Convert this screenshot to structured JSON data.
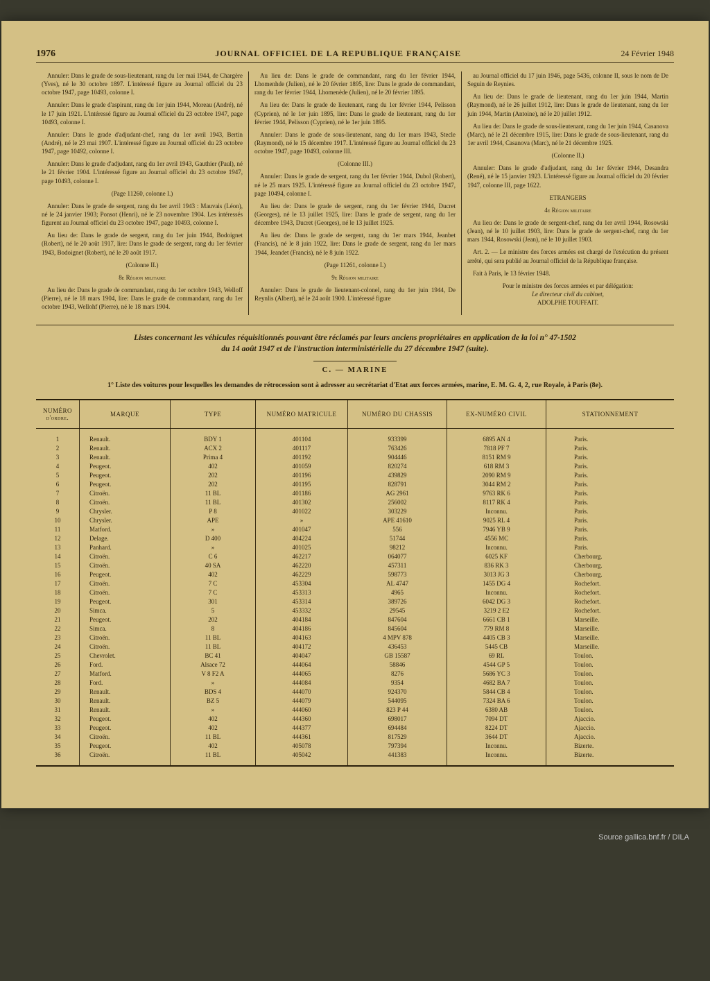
{
  "header": {
    "page_number": "1976",
    "journal_title": "JOURNAL OFFICIEL DE LA REPUBLIQUE FRANÇAISE",
    "date": "24 Février 1948"
  },
  "col1": {
    "p1": "Annuler: Dans le grade de sous-lieutenant, rang du 1er mai 1944, de Chargère (Yves), né le 30 octobre 1897. L'intéressé figure au Journal officiel du 23 octobre 1947, page 10493, colonne I.",
    "p2": "Annuler: Dans le grade d'aspirant, rang du 1er juin 1944, Moreau (André), né le 17 juin 1921. L'intéressé figure au Journal officiel du 23 octobre 1947, page 10493, colonne I.",
    "p3": "Annuler: Dans le grade d'adjudant-chef, rang du 1er avril 1943, Bertin (André), né le 23 mai 1907. L'intéressé figure au Journal officiel du 23 octobre 1947, page 10492, colonne I.",
    "p4": "Annuler: Dans le grade d'adjudant, rang du 1er avril 1943, Gauthier (Paul), né le 21 février 1904. L'intéressé figure au Journal officiel du 23 octobre 1947, page 10493, colonne I.",
    "s1": "(Page 11260, colonne I.)",
    "p5": "Annuler: Dans le grade de sergent, rang du 1er avril 1943 : Mauvais (Léon), né le 24 janvier 1903; Ponsot (Henri), né le 23 novembre 1904. Les intéressés figurent au Journal officiel du 23 octobre 1947, page 10493, colonne I.",
    "p6": "Au lieu de: Dans le grade de sergent, rang du 1er juin 1944, Bodoignet (Robert), né le 20 août 1917, lire: Dans le grade de sergent, rang du 1er février 1943, Bodoignet (Robert), né le 20 août 1917.",
    "s2": "(Colonne II.)",
    "s3": "8e Région militaire",
    "p7": "Au lieu de: Dans le grade de commandant, rang du 1er octobre 1943, Welloff (Pierre), né le 18 mars 1904, lire: Dans le grade de commandant, rang du 1er octobre 1943, Wellohf (Pierre), né le 18 mars 1904."
  },
  "col2": {
    "p1": "Au lieu de: Dans le grade de commandant, rang du 1er février 1944, Lhomenhde (Julien), né le 20 février 1895, lire: Dans le grade de commandant, rang du 1er février 1944, Lhomenède (Julien), né le 20 février 1895.",
    "p2": "Au lieu de: Dans le grade de lieutenant, rang du 1er février 1944, Pelisson (Cyprien), né le 1er juin 1895, lire: Dans le grade de lieutenant, rang du 1er février 1944, Pelisson (Cyprien), né le 1er juin 1895.",
    "p3": "Annuler: Dans le grade de sous-lieutenant, rang du 1er mars 1943, Stecle (Raymond), né le 15 décembre 1917. L'intéressé figure au Journal officiel du 23 octobre 1947, page 10493, colonne III.",
    "s1": "(Colonne III.)",
    "p4": "Annuler: Dans le grade de sergent, rang du 1er février 1944, Dubol (Robert), né le 25 mars 1925. L'intéressé figure au Journal officiel du 23 octobre 1947, page 10494, colonne I.",
    "p5": "Au lieu de: Dans le grade de sergent, rang du 1er février 1944, Ducret (Georges), né le 13 juillet 1925, lire: Dans le grade de sergent, rang du 1er décembre 1943, Ducret (Georges), né le 13 juillet 1925.",
    "p6": "Au lieu de: Dans le grade de sergent, rang du 1er mars 1944, Jeanbet (Francis), né le 8 juin 1922, lire: Dans le grade de sergent, rang du 1er mars 1944, Jeandet (Francis), né le 8 juin 1922.",
    "s2": "(Page 11261, colonne I.)",
    "s3": "9e Région militaire",
    "p7": "Annuler: Dans le grade de lieutenant-colonel, rang du 1er juin 1944, De Reynlis (Albert), né le 24 août 1900. L'intéressé figure"
  },
  "col3": {
    "p1": "au Journal officiel du 17 juin 1946, page 5436, colonne II, sous le nom de De Seguin de Reynies.",
    "p2": "Au lieu de: Dans le grade de lieutenant, rang du 1er juin 1944, Martin (Raymond), né le 26 juillet 1912, lire: Dans le grade de lieutenant, rang du 1er juin 1944, Martin (Antoine), né le 20 juillet 1912.",
    "p3": "Au lieu de: Dans le grade de sous-lieutenant, rang du 1er juin 1944, Casanova (Marc), né le 21 décembre 1915, lire: Dans le grade de sous-lieutenant, rang du 1er avril 1944, Casanova (Marc), né le 21 décembre 1925.",
    "s1": "(Colonne II.)",
    "p4": "Annuler: Dans le grade d'adjudant, rang du 1er février 1944, Desandra (René), né le 15 janvier 1923. L'intéressé figure au Journal officiel du 20 février 1947, colonne III, page 1622.",
    "s2": "ETRANGERS",
    "s3": "4e Région militaire",
    "p5": "Au lieu de: Dans le grade de sergent-chef, rang du 1er avril 1944, Rosowski (Jean), né le 10 juillet 1903, lire: Dans le grade de sergent-chef, rang du 1er mars 1944, Rosowski (Jean), né le 10 juillet 1903.",
    "p6": "Art. 2. — Le ministre des forces armées est chargé de l'exécution du présent arrêté, qui sera publié au Journal officiel de la République française.",
    "p7": "Fait à Paris, le 13 février 1948.",
    "sig1": "Pour le ministre des forces armées et par délégation:",
    "sig2": "Le directeur civil du cabinet,",
    "sig3": "ADOLPHE TOUFFAIT."
  },
  "section": {
    "title_line1": "Listes concernant les véhicules réquisitionnés pouvant être réclamés par leurs anciens propriétaires en application de la loi n° 47-1502",
    "title_line2": "du 14 août 1947 et de l'instruction interministérielle du 27 décembre 1947 (suite).",
    "marine": "C. — MARINE",
    "intro": "1° Liste des voitures pour lesquelles les demandes de rétrocession sont à adresser au secrétariat d'Etat aux forces armées, marine, E. M. G. 4, 2, rue Royale, à Paris (8e)."
  },
  "table": {
    "headers": {
      "num": "NUMÉRO d'ordre.",
      "marque": "MARQUE",
      "type": "TYPE",
      "matricule": "NUMÉRO MATRICULE",
      "chassis": "NUMÉRO DU CHASSIS",
      "civil": "EX-NUMÉRO CIVIL",
      "station": "STATIONNEMENT"
    },
    "rows": [
      [
        "1",
        "Renault.",
        "BDY 1",
        "401104",
        "933399",
        "6895 AN 4",
        "Paris."
      ],
      [
        "2",
        "Renault.",
        "ACX 2",
        "401117",
        "763426",
        "7818 PF 7",
        "Paris."
      ],
      [
        "3",
        "Renault.",
        "Prima 4",
        "401192",
        "904446",
        "8151 RM 9",
        "Paris."
      ],
      [
        "4",
        "Peugeot.",
        "402",
        "401059",
        "820274",
        "618 RM 3",
        "Paris."
      ],
      [
        "5",
        "Peugeot.",
        "202",
        "401196",
        "439829",
        "2090 RM 9",
        "Paris."
      ],
      [
        "6",
        "Peugeot.",
        "202",
        "401195",
        "828791",
        "3044 RM 2",
        "Paris."
      ],
      [
        "7",
        "Citroën.",
        "11 BL",
        "401186",
        "AG 2961",
        "9763 RK 6",
        "Paris."
      ],
      [
        "8",
        "Citroën.",
        "11 BL",
        "401302",
        "256002",
        "8117 RK 4",
        "Paris."
      ],
      [
        "9",
        "Chrysler.",
        "P 8",
        "401022",
        "303229",
        "Inconnu.",
        "Paris."
      ],
      [
        "10",
        "Chrysler.",
        "APE",
        "»",
        "APE 41610",
        "9025 RL 4",
        "Paris."
      ],
      [
        "11",
        "Matford.",
        "»",
        "401047",
        "556",
        "7946 YB 9",
        "Paris."
      ],
      [
        "12",
        "Delage.",
        "D 400",
        "404224",
        "51744",
        "4556 MC",
        "Paris."
      ],
      [
        "13",
        "Panhard.",
        "»",
        "401025",
        "98212",
        "Inconnu.",
        "Paris."
      ],
      [
        "14",
        "Citroën.",
        "C 6",
        "462217",
        "064077",
        "6025 KF",
        "Cherbourg."
      ],
      [
        "15",
        "Citroën.",
        "40 SA",
        "462220",
        "457311",
        "836 RK 3",
        "Cherbourg."
      ],
      [
        "16",
        "Peugeot.",
        "402",
        "462229",
        "598773",
        "3013 JG 3",
        "Cherbourg."
      ],
      [
        "17",
        "Citroën.",
        "7 C",
        "453304",
        "AL 4747",
        "1455 DG 4",
        "Rochefort."
      ],
      [
        "18",
        "Citroën.",
        "7 C",
        "453313",
        "4965",
        "Inconnu.",
        "Rochefort."
      ],
      [
        "19",
        "Peugeot.",
        "301",
        "453314",
        "389726",
        "6042 DG 3",
        "Rochefort."
      ],
      [
        "20",
        "Simca.",
        "5",
        "453332",
        "29545",
        "3219 2 E2",
        "Rochefort."
      ],
      [
        "21",
        "Peugeot.",
        "202",
        "404184",
        "847604",
        "6661 CB 1",
        "Marseille."
      ],
      [
        "22",
        "Simca.",
        "8",
        "404186",
        "845604",
        "779 RM 8",
        "Marseille."
      ],
      [
        "23",
        "Citroën.",
        "11 BL",
        "404163",
        "4 MPV 878",
        "4405 CB 3",
        "Marseille."
      ],
      [
        "24",
        "Citroën.",
        "11 BL",
        "404172",
        "436453",
        "5445 CB",
        "Marseille."
      ],
      [
        "25",
        "Chevrolet.",
        "BC 41",
        "404047",
        "GB 15587",
        "69 RL",
        "Toulon."
      ],
      [
        "26",
        "Ford.",
        "Alsace 72",
        "444064",
        "58846",
        "4544 GP 5",
        "Toulon."
      ],
      [
        "27",
        "Matford.",
        "V 8 F2 A",
        "444065",
        "8276",
        "5686 YC 3",
        "Toulon."
      ],
      [
        "28",
        "Ford.",
        "»",
        "444084",
        "9354",
        "4682 BA 7",
        "Toulon."
      ],
      [
        "29",
        "Renault.",
        "BDS 4",
        "444070",
        "924370",
        "5844 CB 4",
        "Toulon."
      ],
      [
        "30",
        "Renault.",
        "BZ 5",
        "444079",
        "544095",
        "7324 BA 6",
        "Toulon."
      ],
      [
        "31",
        "Renault.",
        "»",
        "444060",
        "823 P 44",
        "6380 AB",
        "Toulon."
      ],
      [
        "32",
        "Peugeot.",
        "402",
        "444360",
        "698017",
        "7094 DT",
        "Ajaccio."
      ],
      [
        "33",
        "Peugeot.",
        "402",
        "444377",
        "694484",
        "8224 DT",
        "Ajaccio."
      ],
      [
        "34",
        "Citroën.",
        "11 BL",
        "444361",
        "817529",
        "3644 DT",
        "Ajaccio."
      ],
      [
        "35",
        "Peugeot.",
        "402",
        "405078",
        "797394",
        "Inconnu.",
        "Bizerte."
      ],
      [
        "36",
        "Citroën.",
        "11 BL",
        "405042",
        "441383",
        "Inconnu.",
        "Bizerte."
      ]
    ]
  },
  "footer": {
    "credit": "Source gallica.bnf.fr / DILA"
  }
}
